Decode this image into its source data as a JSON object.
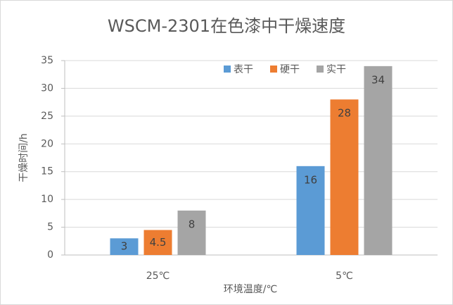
{
  "chart_data": {
    "type": "bar",
    "title": "WSCM-2301在色漆中干燥速度",
    "x_label": "环境温度/℃",
    "y_label": "干燥时间/h",
    "categories": [
      "25℃",
      "5℃"
    ],
    "series": [
      {
        "name": "表干",
        "color": "#5b9bd5",
        "values": [
          3,
          16
        ]
      },
      {
        "name": "硬干",
        "color": "#ed7d31",
        "values": [
          4.5,
          28
        ]
      },
      {
        "name": "实干",
        "color": "#a5a5a5",
        "values": [
          8,
          34
        ]
      }
    ],
    "ylim": [
      0,
      35
    ],
    "yticks": [
      0,
      5,
      10,
      15,
      20,
      25,
      30,
      35
    ],
    "grid": true,
    "legend": "top"
  }
}
